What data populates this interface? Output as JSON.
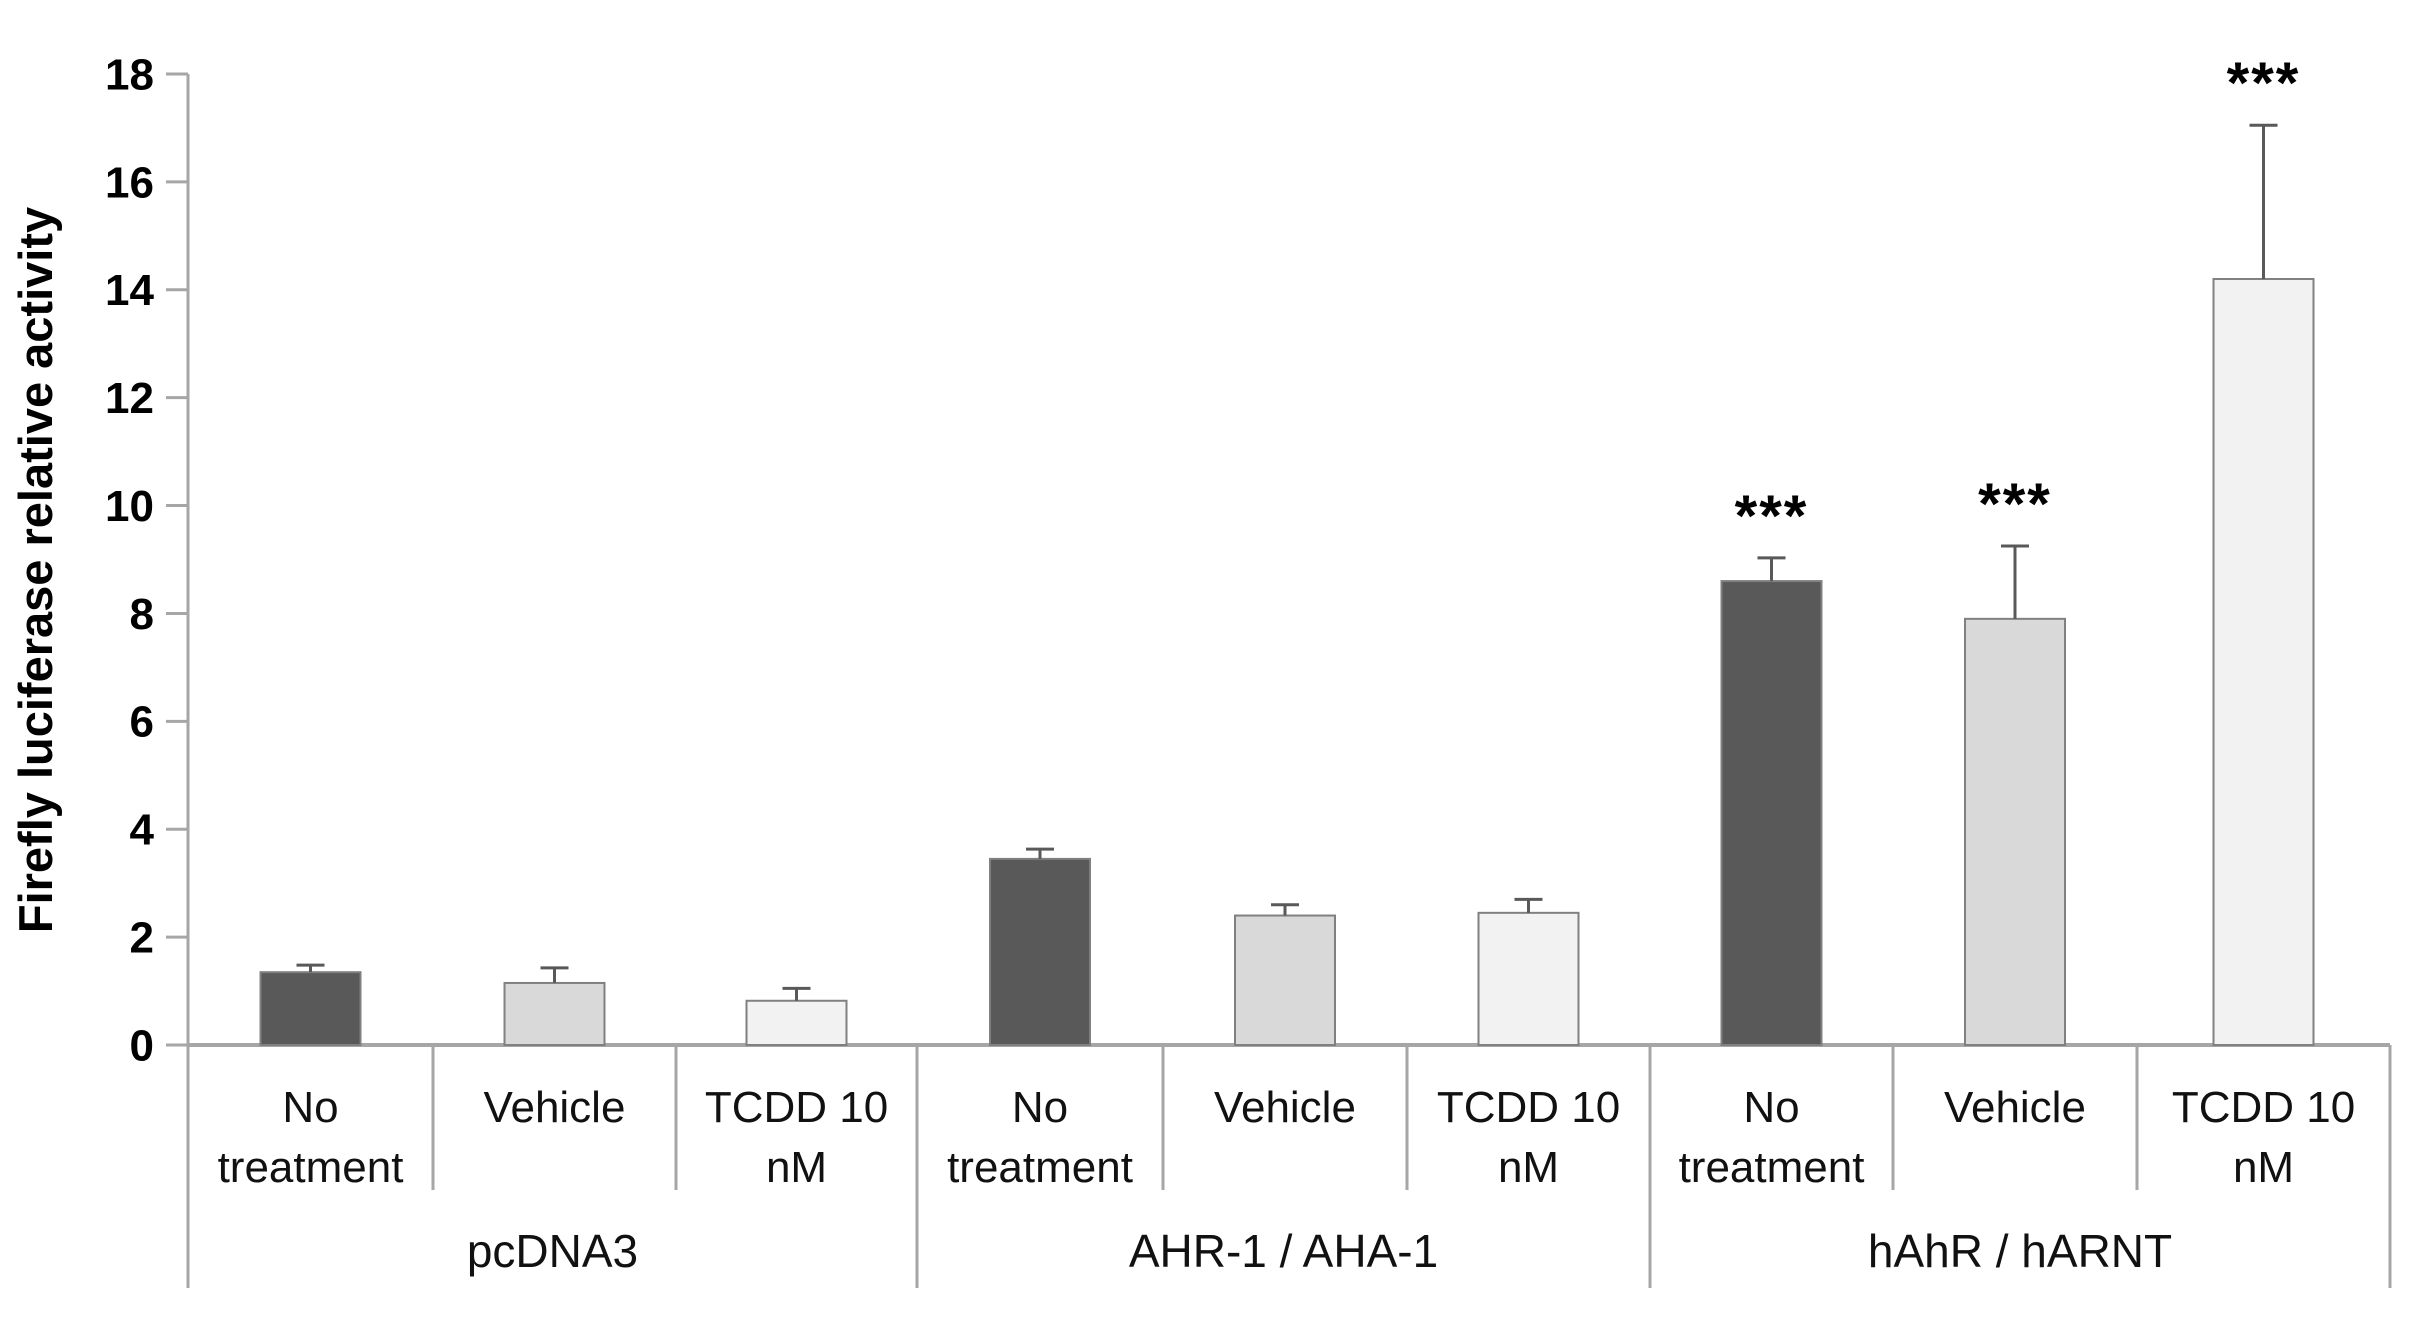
{
  "figure": {
    "background": "#ffffff"
  },
  "chart_data": {
    "type": "bar",
    "title": "",
    "xlabel": "",
    "ylabel": "Firefly luciferase relative activity",
    "ylim": [
      0,
      18
    ],
    "ytick_step": 2,
    "yticks": [
      18,
      16,
      14,
      12,
      10,
      8,
      6,
      4,
      2,
      0
    ],
    "grid": false,
    "legend": false,
    "error_bars": "upper whisker with cap",
    "colors": {
      "no_treatment_fill": "#595959",
      "vehicle_fill": "#d9d9d9",
      "tcdd_fill": "#f2f2f2",
      "bar_stroke": "#808080",
      "axis_line": "#a6a6a6",
      "error_bar": "#595959",
      "text": "#000000"
    },
    "groups": [
      {
        "label": "pcDNA3",
        "bars": [
          {
            "treatment": "No treatment",
            "label_lines": [
              "No",
              "treatment"
            ],
            "value": 1.35,
            "error": 0.13,
            "fill": "#595959",
            "significance": ""
          },
          {
            "treatment": "Vehicle",
            "label_lines": [
              "Vehicle"
            ],
            "value": 1.15,
            "error": 0.28,
            "fill": "#d9d9d9",
            "significance": ""
          },
          {
            "treatment": "TCDD 10 nM",
            "label_lines": [
              "TCDD 10",
              "nM"
            ],
            "value": 0.82,
            "error": 0.23,
            "fill": "#f2f2f2",
            "significance": ""
          }
        ]
      },
      {
        "label": "AHR-1 / AHA-1",
        "bars": [
          {
            "treatment": "No treatment",
            "label_lines": [
              "No",
              "treatment"
            ],
            "value": 3.45,
            "error": 0.18,
            "fill": "#595959",
            "significance": ""
          },
          {
            "treatment": "Vehicle",
            "label_lines": [
              "Vehicle"
            ],
            "value": 2.4,
            "error": 0.2,
            "fill": "#d9d9d9",
            "significance": ""
          },
          {
            "treatment": "TCDD 10 nM",
            "label_lines": [
              "TCDD 10",
              "nM"
            ],
            "value": 2.45,
            "error": 0.25,
            "fill": "#f2f2f2",
            "significance": ""
          }
        ]
      },
      {
        "label": "hAhR / hARNT",
        "bars": [
          {
            "treatment": "No treatment",
            "label_lines": [
              "No",
              "treatment"
            ],
            "value": 8.6,
            "error": 0.43,
            "fill": "#595959",
            "significance": "***"
          },
          {
            "treatment": "Vehicle",
            "label_lines": [
              "Vehicle"
            ],
            "value": 7.9,
            "error": 1.35,
            "fill": "#d9d9d9",
            "significance": "***"
          },
          {
            "treatment": "TCDD 10 nM",
            "label_lines": [
              "TCDD 10",
              "nM"
            ],
            "value": 14.2,
            "error": 2.85,
            "fill": "#f2f2f2",
            "significance": "***"
          }
        ]
      }
    ]
  }
}
